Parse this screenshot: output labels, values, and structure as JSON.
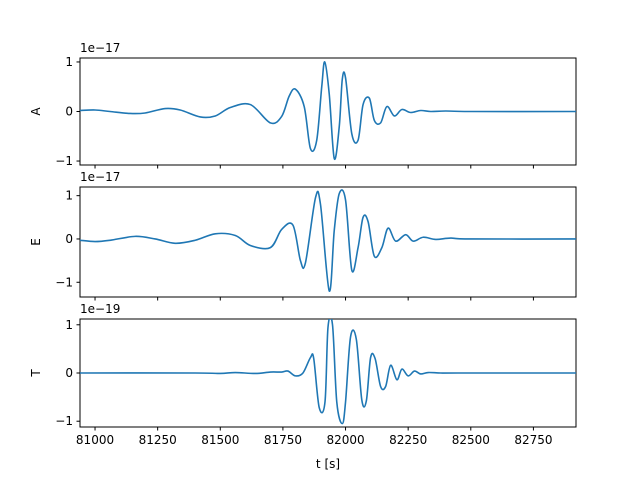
{
  "chart_data": [
    {
      "type": "line",
      "ylabel": "A",
      "offset_text": "1e−17",
      "xlim": [
        80940,
        82920
      ],
      "ylim": [
        -1.08,
        1.08
      ],
      "yticks": [
        -1,
        0,
        1
      ],
      "ytick_labels": [
        "−1",
        "0",
        "1"
      ],
      "grid": false,
      "series": [
        {
          "color": "#1f77b4",
          "x": [
            80940,
            81000,
            81060,
            81140,
            81200,
            81280,
            81340,
            81420,
            81480,
            81540,
            81620,
            81700,
            81745,
            81775,
            81800,
            81835,
            81860,
            81885,
            81905,
            81917,
            81935,
            81955,
            81975,
            81987,
            82000,
            82025,
            82050,
            82070,
            82095,
            82115,
            82140,
            82165,
            82195,
            82225,
            82260,
            82300,
            82340,
            82400,
            82500,
            82920
          ],
          "y": [
            0.02,
            0.03,
            0.0,
            -0.04,
            -0.03,
            0.06,
            0.03,
            -0.11,
            -0.09,
            0.08,
            0.14,
            -0.23,
            -0.1,
            0.31,
            0.45,
            0.1,
            -0.75,
            -0.58,
            0.5,
            1.0,
            0.35,
            -0.95,
            -0.3,
            0.65,
            0.68,
            -0.45,
            -0.58,
            0.14,
            0.27,
            -0.18,
            -0.23,
            0.1,
            -0.09,
            0.04,
            -0.02,
            0.02,
            0.0,
            0.01,
            0.0,
            0.0
          ]
        }
      ]
    },
    {
      "type": "line",
      "ylabel": "E",
      "offset_text": "1e−17",
      "xlim": [
        80940,
        82920
      ],
      "ylim": [
        -1.34,
        1.2
      ],
      "yticks": [
        -1,
        0,
        1
      ],
      "ytick_labels": [
        "−1",
        "0",
        "1"
      ],
      "grid": false,
      "series": [
        {
          "color": "#1f77b4",
          "x": [
            80940,
            81000,
            81060,
            81160,
            81240,
            81320,
            81400,
            81480,
            81560,
            81620,
            81700,
            81745,
            81790,
            81820,
            81840,
            81880,
            81900,
            81935,
            81955,
            81975,
            82000,
            82025,
            82050,
            82070,
            82090,
            82115,
            82145,
            82170,
            82200,
            82240,
            82270,
            82310,
            82360,
            82420,
            82500,
            82920
          ],
          "y": [
            -0.03,
            -0.06,
            -0.03,
            0.06,
            0.0,
            -0.1,
            -0.03,
            0.12,
            0.08,
            -0.15,
            -0.2,
            0.22,
            0.32,
            -0.5,
            -0.55,
            0.95,
            0.8,
            -1.2,
            0.2,
            1.05,
            0.9,
            -0.72,
            -0.2,
            0.5,
            0.4,
            -0.4,
            -0.2,
            0.25,
            -0.05,
            0.1,
            -0.05,
            0.04,
            -0.01,
            0.02,
            0.0,
            0.0
          ]
        }
      ]
    },
    {
      "type": "line",
      "ylabel": "T",
      "offset_text": "1e−19",
      "xlim": [
        80940,
        82920
      ],
      "ylim": [
        -1.12,
        1.12
      ],
      "yticks": [
        -1,
        0,
        1
      ],
      "ytick_labels": [
        "−1",
        "0",
        "1"
      ],
      "grid": false,
      "series": [
        {
          "color": "#1f77b4",
          "x": [
            80940,
            81400,
            81500,
            81560,
            81640,
            81700,
            81745,
            81770,
            81800,
            81830,
            81860,
            81873,
            81895,
            81918,
            81930,
            81948,
            81965,
            81987,
            82000,
            82020,
            82043,
            82065,
            82083,
            82100,
            82118,
            82140,
            82160,
            82180,
            82205,
            82225,
            82250,
            82275,
            82300,
            82330,
            82380,
            82450,
            82920
          ],
          "y": [
            0.0,
            0.0,
            -0.01,
            0.01,
            -0.01,
            0.02,
            0.02,
            0.04,
            -0.06,
            0.0,
            0.32,
            0.3,
            -0.72,
            -0.6,
            0.95,
            1.0,
            -0.6,
            -1.05,
            -0.6,
            0.75,
            0.7,
            -0.56,
            -0.58,
            0.32,
            0.3,
            -0.28,
            -0.28,
            0.16,
            -0.14,
            0.08,
            -0.06,
            0.04,
            -0.02,
            0.01,
            0.0,
            0.0,
            0.0
          ]
        }
      ]
    }
  ],
  "xaxis": {
    "label": "t [s]",
    "ticks": [
      81000,
      81250,
      81500,
      81750,
      82000,
      82250,
      82500,
      82750
    ],
    "tick_labels": [
      "81000",
      "81250",
      "81500",
      "81750",
      "82000",
      "82250",
      "82500",
      "82750"
    ]
  }
}
